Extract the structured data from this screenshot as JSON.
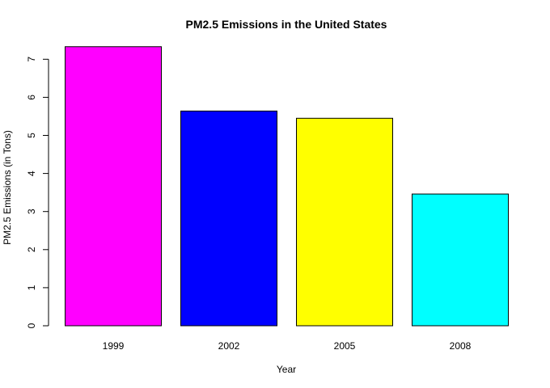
{
  "chart_data": {
    "type": "bar",
    "title": "PM2.5 Emissions in the United States",
    "xlabel": "Year",
    "ylabel": "PM2.5 Emissions (in Tons)",
    "categories": [
      "1999",
      "2002",
      "2005",
      "2008"
    ],
    "values": [
      7.33,
      5.64,
      5.45,
      3.46
    ],
    "colors": [
      "#ff00ff",
      "#0000ff",
      "#ffff00",
      "#00ffff"
    ],
    "ylim": [
      0,
      7.5
    ],
    "yticks": [
      0,
      1,
      2,
      3,
      4,
      5,
      6,
      7
    ],
    "grid": false,
    "legend": "none"
  }
}
